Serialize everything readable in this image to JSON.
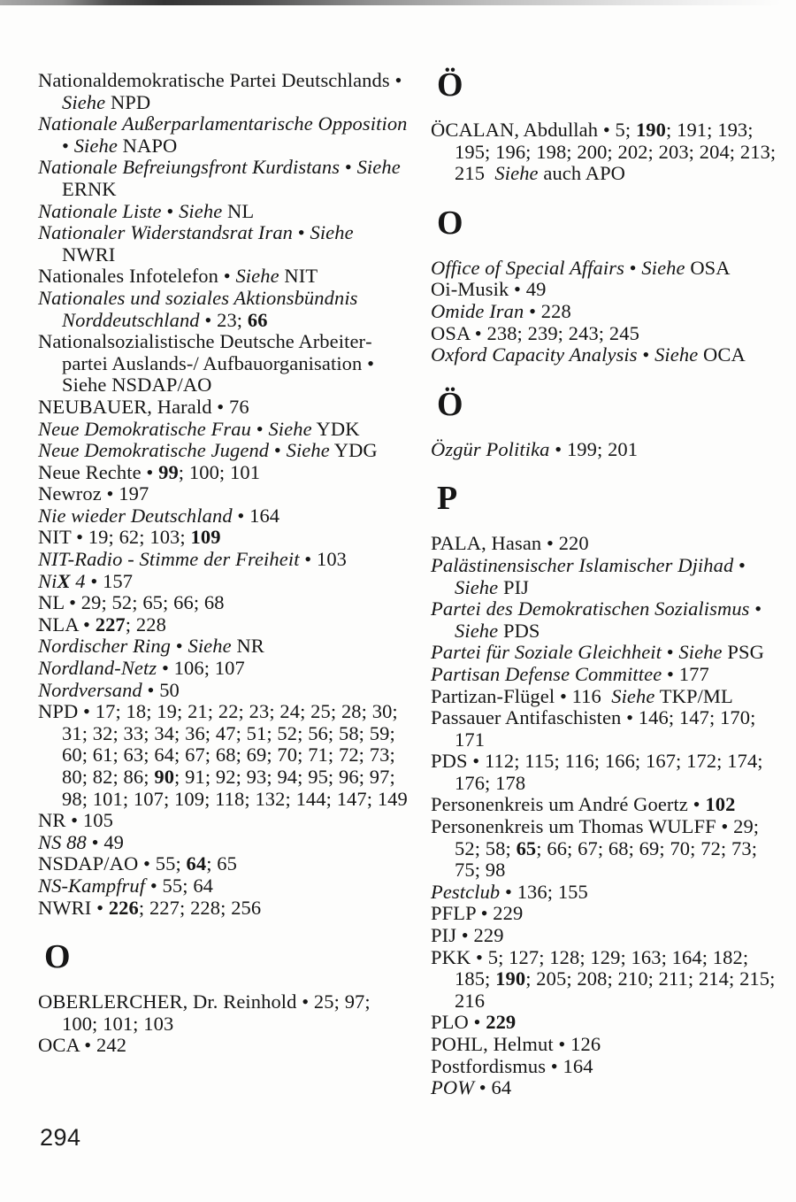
{
  "colors": {
    "ink": "#161616",
    "paper": "#fdfdfc"
  },
  "page_number": "294",
  "columns": {
    "left": [
      {
        "type": "entry",
        "segments": [
          {
            "t": "Nationaldemokratische Partei Deutsch­lands • ",
            "s": ""
          },
          {
            "t": "Siehe",
            "s": "i"
          },
          {
            "t": " NPD",
            "s": ""
          }
        ]
      },
      {
        "type": "entry",
        "segments": [
          {
            "t": "Nationale Außerparlamentarische Oppo­sition",
            "s": "i"
          },
          {
            "t": " • ",
            "s": ""
          },
          {
            "t": "Siehe",
            "s": "i"
          },
          {
            "t": " NAPO",
            "s": ""
          }
        ]
      },
      {
        "type": "entry",
        "segments": [
          {
            "t": "Nationale Befreiungsfront Kurdistans",
            "s": "i"
          },
          {
            "t": " • ",
            "s": ""
          },
          {
            "t": "Siehe",
            "s": "i"
          },
          {
            "t": " ERNK",
            "s": ""
          }
        ]
      },
      {
        "type": "entry",
        "segments": [
          {
            "t": "Nationale Liste",
            "s": "i"
          },
          {
            "t": " • ",
            "s": ""
          },
          {
            "t": "Siehe",
            "s": "i"
          },
          {
            "t": " NL",
            "s": ""
          }
        ]
      },
      {
        "type": "entry",
        "segments": [
          {
            "t": "Nationaler Widerstandsrat Iran",
            "s": "i"
          },
          {
            "t": " • ",
            "s": ""
          },
          {
            "t": "Siehe",
            "s": "i"
          },
          {
            "t": " NWRI",
            "s": ""
          }
        ]
      },
      {
        "type": "entry",
        "segments": [
          {
            "t": "Nationales Infotelefon • ",
            "s": ""
          },
          {
            "t": "Siehe",
            "s": "i"
          },
          {
            "t": " NIT",
            "s": ""
          }
        ]
      },
      {
        "type": "entry",
        "segments": [
          {
            "t": "Nationales und soziales Aktionsbündnis Norddeutschland",
            "s": "i"
          },
          {
            "t": " • 23; ",
            "s": ""
          },
          {
            "t": "66",
            "s": "b"
          }
        ]
      },
      {
        "type": "entry",
        "segments": [
          {
            "t": "Nationalsozialistische Deutsche Arbeiter­partei Auslands-/ Aufbauorganisation • Siehe NSDAP/AO",
            "s": ""
          }
        ]
      },
      {
        "type": "entry",
        "segments": [
          {
            "t": "NEUBAUER, Harald • 76",
            "s": ""
          }
        ]
      },
      {
        "type": "entry",
        "segments": [
          {
            "t": "Neue Demokratische Frau",
            "s": "i"
          },
          {
            "t": " • ",
            "s": ""
          },
          {
            "t": "Siehe",
            "s": "i"
          },
          {
            "t": " YDK",
            "s": ""
          }
        ]
      },
      {
        "type": "entry",
        "segments": [
          {
            "t": "Neue Demokratische Jugend",
            "s": "i"
          },
          {
            "t": " • ",
            "s": ""
          },
          {
            "t": "Siehe",
            "s": "i"
          },
          {
            "t": " YDG",
            "s": ""
          }
        ]
      },
      {
        "type": "entry",
        "segments": [
          {
            "t": "Neue Rechte • ",
            "s": ""
          },
          {
            "t": "99",
            "s": "b"
          },
          {
            "t": "; 100; 101",
            "s": ""
          }
        ]
      },
      {
        "type": "entry",
        "segments": [
          {
            "t": "Newroz • 197",
            "s": ""
          }
        ]
      },
      {
        "type": "entry",
        "segments": [
          {
            "t": "Nie wieder Deutschland",
            "s": "i"
          },
          {
            "t": " • 164",
            "s": ""
          }
        ]
      },
      {
        "type": "entry",
        "segments": [
          {
            "t": "NIT • 19; 62; 103; ",
            "s": ""
          },
          {
            "t": "109",
            "s": "b"
          }
        ]
      },
      {
        "type": "entry",
        "segments": [
          {
            "t": "NIT-Radio - Stimme der Freiheit",
            "s": "i"
          },
          {
            "t": " • 103",
            "s": ""
          }
        ]
      },
      {
        "type": "entry",
        "segments": [
          {
            "t": "Ni",
            "s": "i"
          },
          {
            "t": "X",
            "s": "bi"
          },
          {
            "t": " 4",
            "s": "i"
          },
          {
            "t": " • 157",
            "s": ""
          }
        ]
      },
      {
        "type": "entry",
        "segments": [
          {
            "t": "NL • 29; 52; 65; 66; 68",
            "s": ""
          }
        ]
      },
      {
        "type": "entry",
        "segments": [
          {
            "t": "NLA • ",
            "s": ""
          },
          {
            "t": "227",
            "s": "b"
          },
          {
            "t": "; 228",
            "s": ""
          }
        ]
      },
      {
        "type": "entry",
        "segments": [
          {
            "t": "Nordischer Ring",
            "s": "i"
          },
          {
            "t": " • ",
            "s": ""
          },
          {
            "t": "Siehe",
            "s": "i"
          },
          {
            "t": " NR",
            "s": ""
          }
        ]
      },
      {
        "type": "entry",
        "segments": [
          {
            "t": "Nordland-Netz",
            "s": "i"
          },
          {
            "t": " • 106; 107",
            "s": ""
          }
        ]
      },
      {
        "type": "entry",
        "segments": [
          {
            "t": "Nordversand",
            "s": "i"
          },
          {
            "t": " • 50",
            "s": ""
          }
        ]
      },
      {
        "type": "entry",
        "segments": [
          {
            "t": "NPD • 17; 18; 19; 21; 22; 23; 24; 25; 28; 30; 31; 32; 33; 34; 36; 47; 51; 52; 56; 58; 59; 60; 61; 63; 64; 67; 68; 69; 70; 71; 72; 73; 80; 82; 86; ",
            "s": ""
          },
          {
            "t": "90",
            "s": "b"
          },
          {
            "t": "; 91; 92; 93; 94; 95; 96; 97; 98; 101; 107; 109; 118; 132; 144; 147; 149",
            "s": ""
          }
        ]
      },
      {
        "type": "entry",
        "segments": [
          {
            "t": "NR • 105",
            "s": ""
          }
        ]
      },
      {
        "type": "entry",
        "segments": [
          {
            "t": "NS 88",
            "s": "i"
          },
          {
            "t": " • 49",
            "s": ""
          }
        ]
      },
      {
        "type": "entry",
        "segments": [
          {
            "t": "NSDAP/AO • 55; ",
            "s": ""
          },
          {
            "t": "64",
            "s": "b"
          },
          {
            "t": "; 65",
            "s": ""
          }
        ]
      },
      {
        "type": "entry",
        "segments": [
          {
            "t": "NS-Kampfruf",
            "s": "i"
          },
          {
            "t": " • 55; 64",
            "s": ""
          }
        ]
      },
      {
        "type": "entry",
        "segments": [
          {
            "t": "NWRI • ",
            "s": ""
          },
          {
            "t": "226",
            "s": "b"
          },
          {
            "t": "; 227; 228; 256",
            "s": ""
          }
        ]
      },
      {
        "type": "heading",
        "text": "O"
      },
      {
        "type": "entry",
        "segments": [
          {
            "t": "OBERLERCHER, Dr. Reinhold • 25; 97; 100; 101; 103",
            "s": ""
          }
        ]
      },
      {
        "type": "entry",
        "segments": [
          {
            "t": "OCA • 242",
            "s": ""
          }
        ]
      }
    ],
    "right": [
      {
        "type": "heading",
        "text": "Ö"
      },
      {
        "type": "entry",
        "segments": [
          {
            "t": "ÖCALAN, Abdullah • 5; ",
            "s": ""
          },
          {
            "t": "190",
            "s": "b"
          },
          {
            "t": "; 191; 193; 195; 196; 198; 200; 202; 203; 204; 213; 215 ",
            "s": ""
          },
          {
            "t": "Siehe",
            "s": "i"
          },
          {
            "t": " auch APO",
            "s": ""
          }
        ]
      },
      {
        "type": "heading",
        "text": "O"
      },
      {
        "type": "entry",
        "segments": [
          {
            "t": "Office of Special Affairs",
            "s": "i"
          },
          {
            "t": " • ",
            "s": ""
          },
          {
            "t": "Siehe",
            "s": "i"
          },
          {
            "t": " OSA",
            "s": ""
          }
        ]
      },
      {
        "type": "entry",
        "segments": [
          {
            "t": "Oi-Musik • 49",
            "s": ""
          }
        ]
      },
      {
        "type": "entry",
        "segments": [
          {
            "t": "Omide Iran",
            "s": "i"
          },
          {
            "t": " • 228",
            "s": ""
          }
        ]
      },
      {
        "type": "entry",
        "segments": [
          {
            "t": "OSA • 238; 239; 243; 245",
            "s": ""
          }
        ]
      },
      {
        "type": "entry",
        "segments": [
          {
            "t": "Oxford Capacity Analysis",
            "s": "i"
          },
          {
            "t": " • ",
            "s": ""
          },
          {
            "t": "Siehe",
            "s": "i"
          },
          {
            "t": " OCA",
            "s": ""
          }
        ]
      },
      {
        "type": "heading",
        "text": "Ö"
      },
      {
        "type": "entry",
        "segments": [
          {
            "t": "Özgür Politika",
            "s": "i"
          },
          {
            "t": " • 199; 201",
            "s": ""
          }
        ]
      },
      {
        "type": "heading",
        "text": "P"
      },
      {
        "type": "entry",
        "segments": [
          {
            "t": "PALA, Hasan • 220",
            "s": ""
          }
        ]
      },
      {
        "type": "entry",
        "segments": [
          {
            "t": "Palästinensischer Islamischer Djihad",
            "s": "i"
          },
          {
            "t": " • ",
            "s": ""
          },
          {
            "t": "Siehe",
            "s": "i"
          },
          {
            "t": " PIJ",
            "s": ""
          }
        ]
      },
      {
        "type": "entry",
        "segments": [
          {
            "t": "Partei des Demokratischen Sozialismus",
            "s": "i"
          },
          {
            "t": " • ",
            "s": ""
          },
          {
            "t": "Siehe",
            "s": "i"
          },
          {
            "t": " PDS",
            "s": ""
          }
        ]
      },
      {
        "type": "entry",
        "segments": [
          {
            "t": "Partei für Soziale Gleichheit",
            "s": "i"
          },
          {
            "t": " • ",
            "s": ""
          },
          {
            "t": "Siehe",
            "s": "i"
          },
          {
            "t": " PSG",
            "s": ""
          }
        ]
      },
      {
        "type": "entry",
        "segments": [
          {
            "t": "Partisan Defense Committee",
            "s": "i"
          },
          {
            "t": " • 177",
            "s": ""
          }
        ]
      },
      {
        "type": "entry",
        "segments": [
          {
            "t": "Partizan-Flügel • 116 ",
            "s": ""
          },
          {
            "t": "Siehe",
            "s": "i"
          },
          {
            "t": " TKP/ML",
            "s": ""
          }
        ]
      },
      {
        "type": "entry",
        "segments": [
          {
            "t": "Passauer Antifaschisten • 146; 147; 170; 171",
            "s": ""
          }
        ]
      },
      {
        "type": "entry",
        "segments": [
          {
            "t": "PDS • 112; 115; 116; 166; 167; 172; 174; 176; 178",
            "s": ""
          }
        ]
      },
      {
        "type": "entry",
        "segments": [
          {
            "t": "Personenkreis um André Goertz • ",
            "s": ""
          },
          {
            "t": "102",
            "s": "b"
          }
        ]
      },
      {
        "type": "entry",
        "segments": [
          {
            "t": "Personenkreis um Thomas WULFF • 29; 52; 58; ",
            "s": ""
          },
          {
            "t": "65",
            "s": "b"
          },
          {
            "t": "; 66; 67; 68; 69; 70; 72; 73; 75; 98",
            "s": ""
          }
        ]
      },
      {
        "type": "entry",
        "segments": [
          {
            "t": "Pestclub",
            "s": "i"
          },
          {
            "t": " • 136; 155",
            "s": ""
          }
        ]
      },
      {
        "type": "entry",
        "segments": [
          {
            "t": "PFLP • 229",
            "s": ""
          }
        ]
      },
      {
        "type": "entry",
        "segments": [
          {
            "t": "PIJ • 229",
            "s": ""
          }
        ]
      },
      {
        "type": "entry",
        "segments": [
          {
            "t": "PKK • 5; 127; 128; 129; 163; 164; 182; 185; ",
            "s": ""
          },
          {
            "t": "190",
            "s": "b"
          },
          {
            "t": "; 205; 208; 210; 211; 214; 215; 216",
            "s": ""
          }
        ]
      },
      {
        "type": "entry",
        "segments": [
          {
            "t": "PLO • ",
            "s": ""
          },
          {
            "t": "229",
            "s": "b"
          }
        ]
      },
      {
        "type": "entry",
        "segments": [
          {
            "t": "POHL, Helmut • 126",
            "s": ""
          }
        ]
      },
      {
        "type": "entry",
        "segments": [
          {
            "t": "Postfordismus • 164",
            "s": ""
          }
        ]
      },
      {
        "type": "entry",
        "segments": [
          {
            "t": "POW",
            "s": "i"
          },
          {
            "t": " • 64",
            "s": ""
          }
        ]
      }
    ]
  }
}
